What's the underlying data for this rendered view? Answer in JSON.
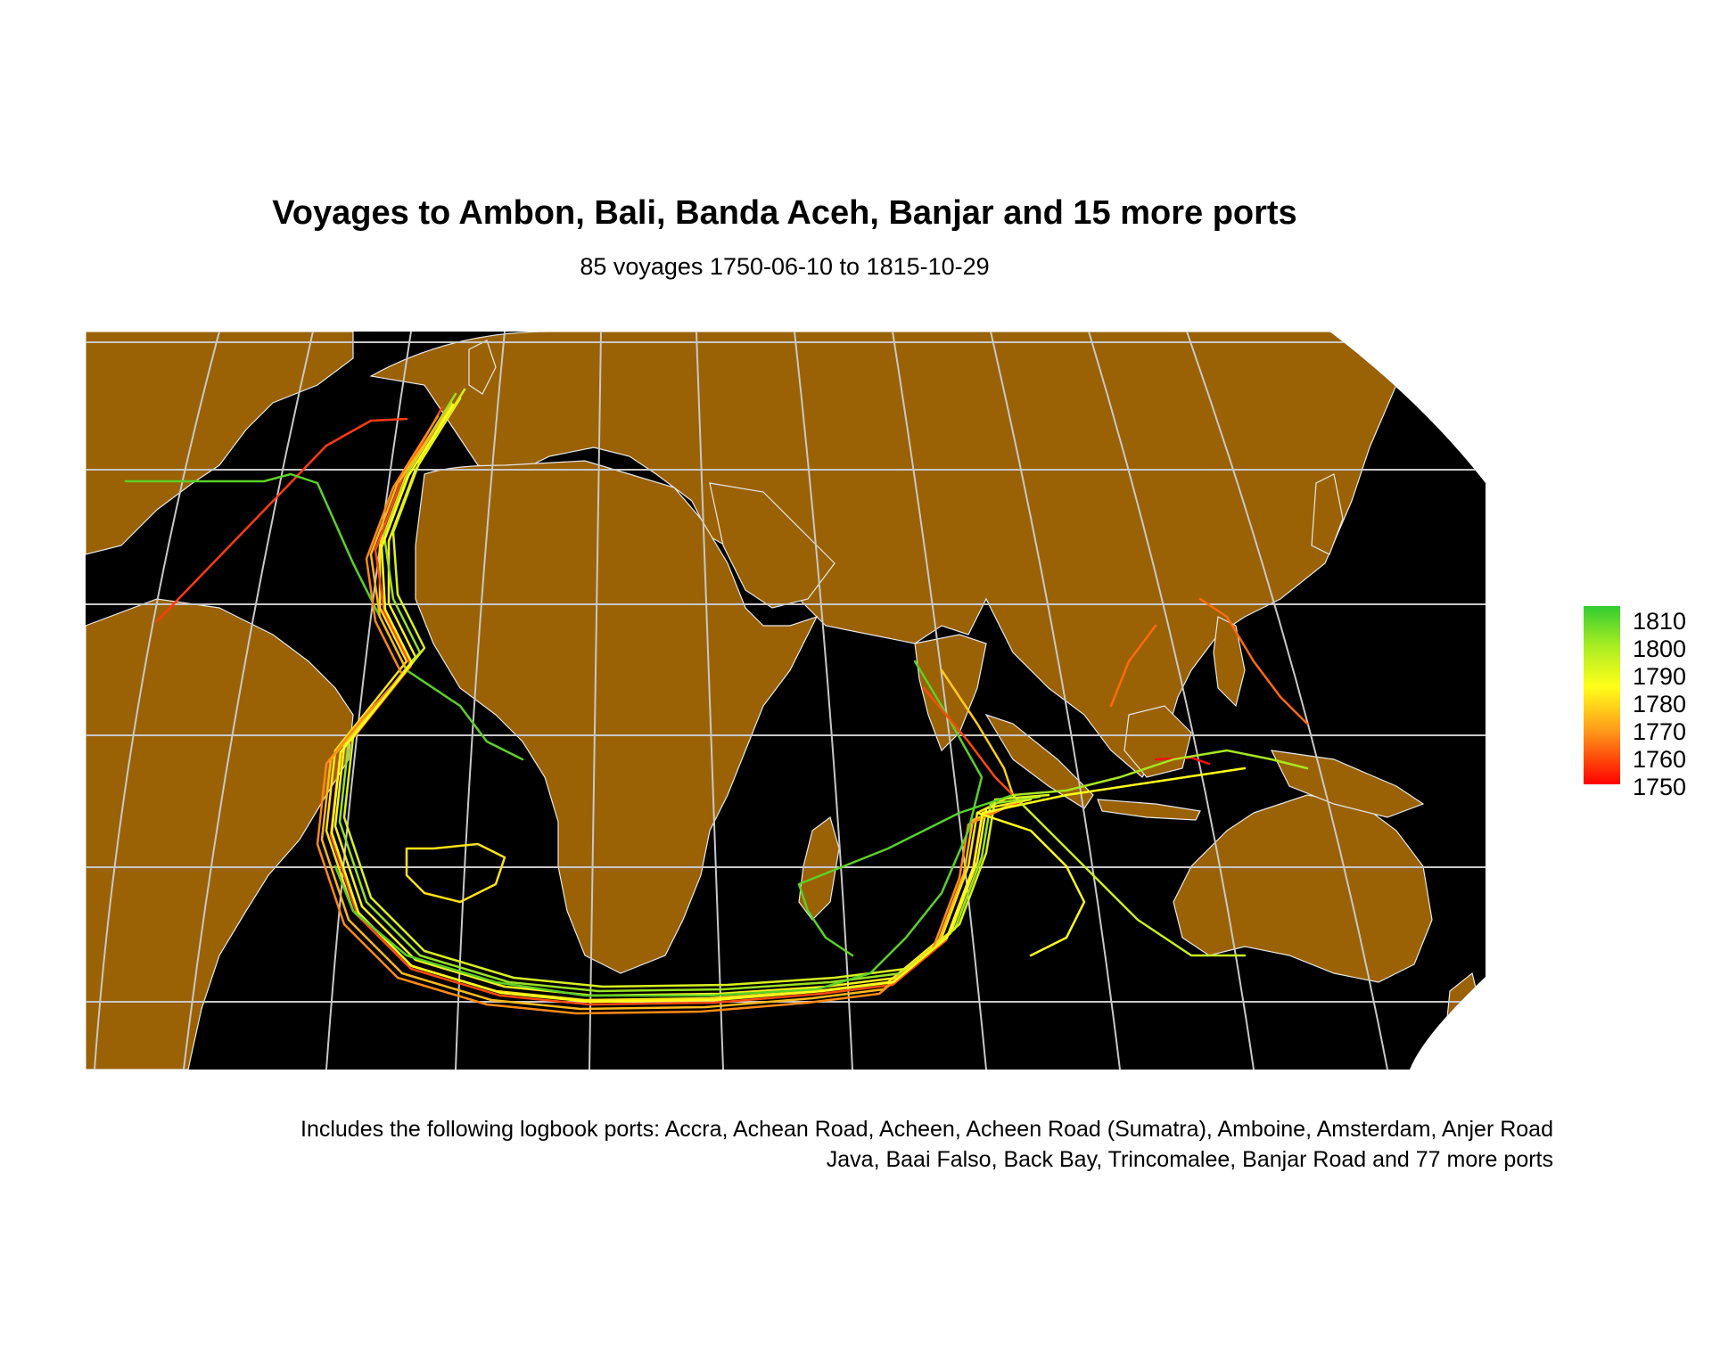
{
  "title": "Voyages to Ambon, Bali, Banda Aceh, Banjar and 15 more ports",
  "subtitle": "85 voyages 1750-06-10 to 1815-10-29",
  "caption": {
    "line1": "Includes the following logbook ports: Accra, Achean Road, Acheen, Acheen Road (Sumatra), Amboine, Amsterdam, Anjer Road",
    "line2": "Java, Baai Falso, Back Bay, Trincomalee, Banjar Road and 77 more ports"
  },
  "legend": {
    "labels": [
      "1810",
      "1800",
      "1790",
      "1780",
      "1770",
      "1760",
      "1750"
    ],
    "colors": {
      "1750": "#ff0000",
      "1760": "#ff6a10",
      "1770": "#ffaa1a",
      "1780": "#ffff1a",
      "1790": "#c8f020",
      "1800": "#88e022",
      "1810": "#33cc33"
    }
  },
  "map": {
    "background": "#000000",
    "land_color": "#9a6205",
    "graticule_color": "#c8c8c8"
  }
}
